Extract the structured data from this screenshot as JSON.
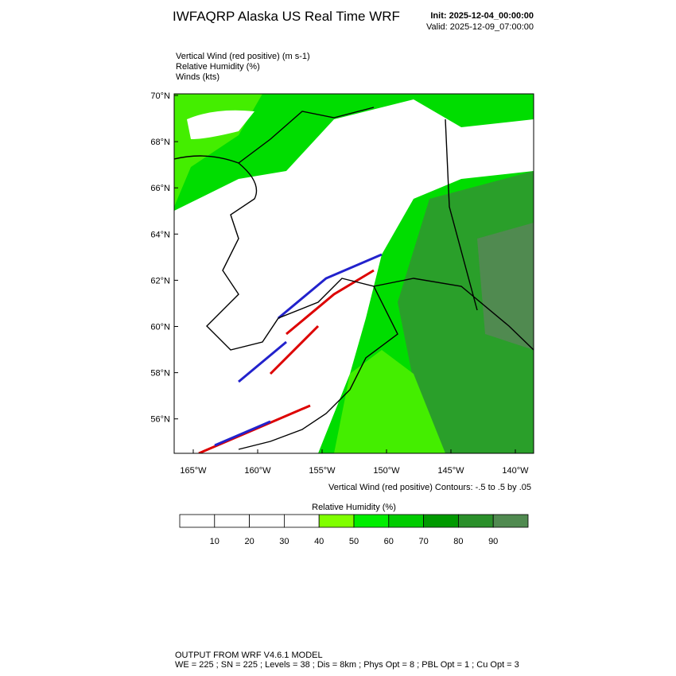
{
  "header": {
    "title": "IWFAQRP Alaska US Real Time WRF",
    "init": "Init: 2025-12-04_00:00:00",
    "valid": "Valid: 2025-12-09_07:00:00"
  },
  "fields": [
    "Vertical Wind (red positive)   (m s-1)",
    "Relative Humidity   (%)",
    "Winds   (kts)"
  ],
  "map": {
    "lat_labels": [
      "70°N",
      "68°N",
      "66°N",
      "64°N",
      "62°N",
      "60°N",
      "58°N",
      "56°N"
    ],
    "lon_labels": [
      "165°W",
      "160°W",
      "155°W",
      "150°W",
      "145°W",
      "140°W"
    ],
    "contour_note": "Vertical Wind (red positive) Contours: -.5 to .5 by .05"
  },
  "colorbar": {
    "title": "Relative Humidity  (%)",
    "labels": [
      10,
      20,
      30,
      40,
      50,
      60,
      70,
      80,
      90
    ],
    "colors": [
      "#ffffff",
      "#ffffff",
      "#ffffff",
      "#ffffff",
      "#80ff00",
      "#00ee00",
      "#00cc00",
      "#009900",
      "#2a8f2a",
      "#508a50"
    ]
  },
  "footer": [
    "OUTPUT FROM WRF V4.6.1 MODEL",
    "WE = 225 ; SN = 225 ; Levels = 38 ; Dis = 8km ; Phys Opt = 8 ; PBL Opt = 1 ; Cu Opt = 3"
  ]
}
